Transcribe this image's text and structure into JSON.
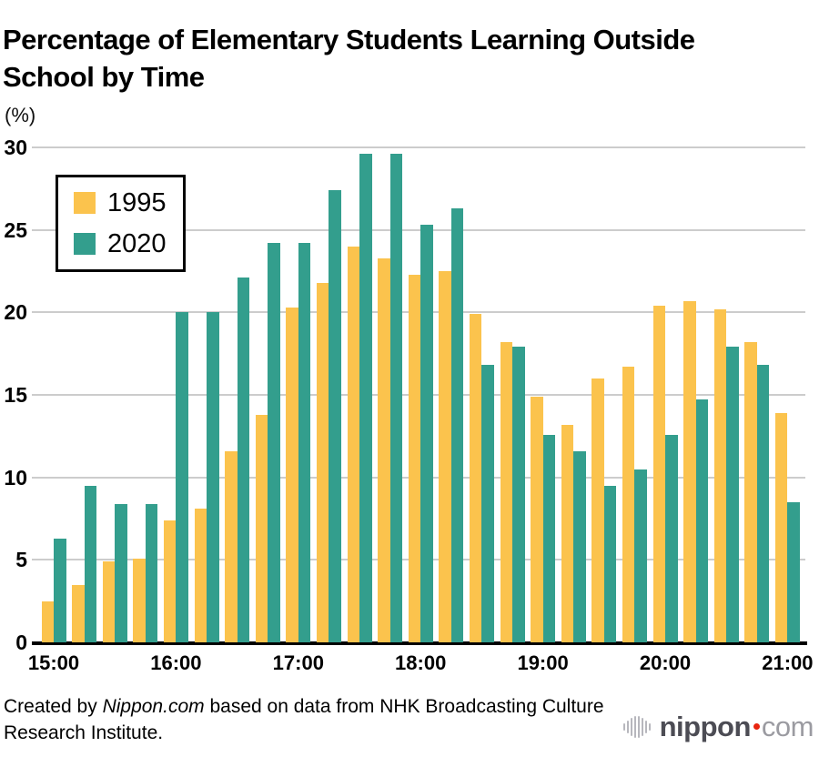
{
  "title": "Percentage of Elementary Students Learning Outside School by Time",
  "y_axis_unit_label": "(%)",
  "legend": {
    "items": [
      {
        "label": "1995",
        "color": "#FBC34D"
      },
      {
        "label": "2020",
        "color": "#339E8D"
      }
    ]
  },
  "footer": {
    "pre": "Created by ",
    "brand": "Nippon.com",
    "post": " based on data from NHK Broadcasting Culture Research Institute."
  },
  "logo": {
    "name": "nippon",
    "tld": "com"
  },
  "colors": {
    "bar_1995": "#FBC34D",
    "bar_2020": "#339E8D",
    "gridline": "#cccccc",
    "axis": "#000000",
    "logo_gray_dark": "#4c4c54",
    "logo_gray_light": "#9b9ba1",
    "logo_dot_red": "#e8250f"
  },
  "chart_data": {
    "type": "bar",
    "title": "Percentage of Elementary Students Learning Outside School by Time",
    "xlabel": "",
    "ylabel": "(%)",
    "ylim": [
      0,
      30
    ],
    "yticks": [
      0,
      5,
      10,
      15,
      20,
      25,
      30
    ],
    "grid": true,
    "legend_position": "upper-left",
    "x_tick_labels": [
      "15:00",
      "16:00",
      "17:00",
      "18:00",
      "19:00",
      "20:00",
      "21:00"
    ],
    "categories": [
      "15:00",
      "15:15",
      "15:30",
      "15:45",
      "16:00",
      "16:15",
      "16:30",
      "16:45",
      "17:00",
      "17:15",
      "17:30",
      "17:45",
      "18:00",
      "18:15",
      "18:30",
      "18:45",
      "19:00",
      "19:15",
      "19:30",
      "19:45",
      "20:00",
      "20:15",
      "20:30",
      "20:45",
      "21:00"
    ],
    "series": [
      {
        "name": "1995",
        "color": "#FBC34D",
        "values": [
          2.5,
          3.5,
          4.9,
          5.1,
          7.4,
          8.1,
          11.6,
          13.8,
          20.3,
          21.8,
          24.0,
          23.3,
          22.3,
          22.5,
          19.9,
          18.2,
          14.9,
          13.2,
          16.0,
          16.7,
          20.4,
          20.7,
          20.2,
          18.2,
          13.9
        ]
      },
      {
        "name": "2020",
        "color": "#339E8D",
        "values": [
          6.3,
          9.5,
          8.4,
          8.4,
          20.0,
          20.0,
          22.1,
          24.2,
          24.2,
          27.4,
          29.6,
          29.6,
          25.3,
          26.3,
          16.8,
          17.9,
          12.6,
          11.6,
          9.5,
          10.5,
          12.6,
          14.7,
          17.9,
          16.8,
          8.5
        ]
      }
    ]
  }
}
